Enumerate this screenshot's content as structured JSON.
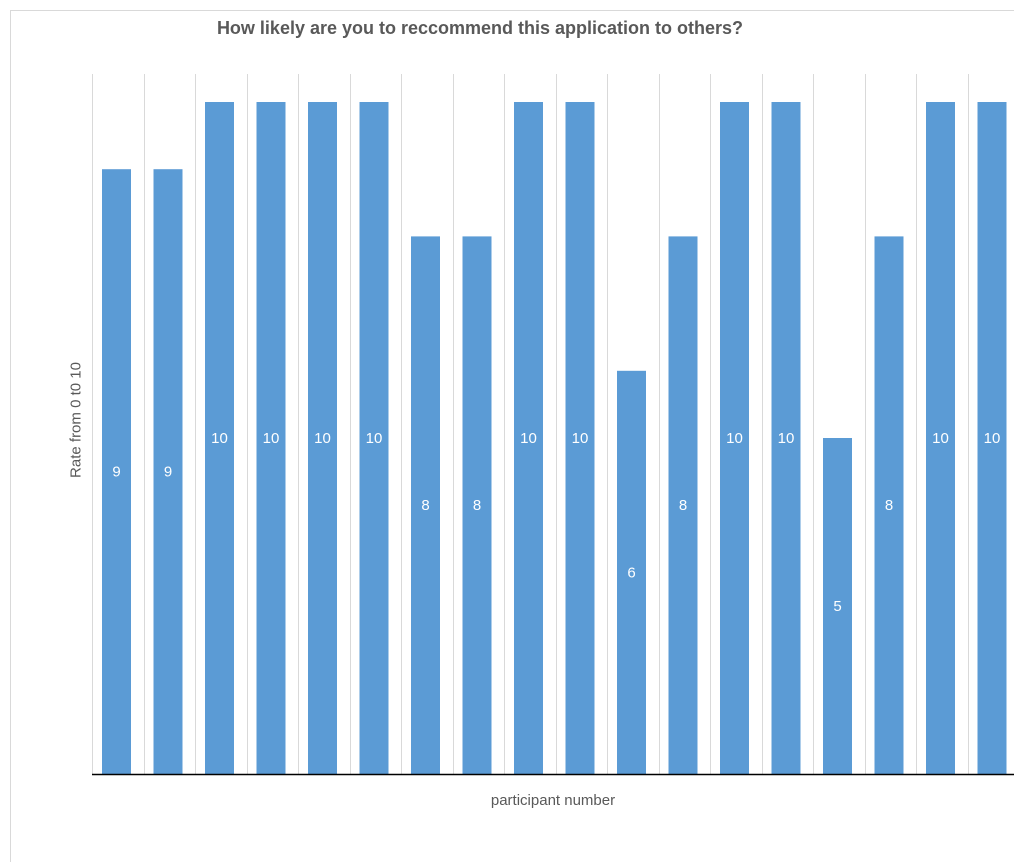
{
  "chart_data": {
    "type": "bar",
    "title": "How likely are you to reccommend this application to others?",
    "xlabel": "participant number",
    "ylabel": "Rate from 0 t0 10",
    "ylim": [
      0,
      10
    ],
    "grid": "vertical",
    "bar_color": "#5b9bd5",
    "values": [
      9,
      9,
      10,
      10,
      10,
      10,
      8,
      8,
      10,
      10,
      6,
      8,
      10,
      10,
      5,
      8,
      10,
      10
    ],
    "data_labels": [
      "9",
      "9",
      "10",
      "10",
      "10",
      "10",
      "8",
      "8",
      "10",
      "10",
      "6",
      "8",
      "10",
      "10",
      "5",
      "8",
      "10",
      "10"
    ]
  }
}
